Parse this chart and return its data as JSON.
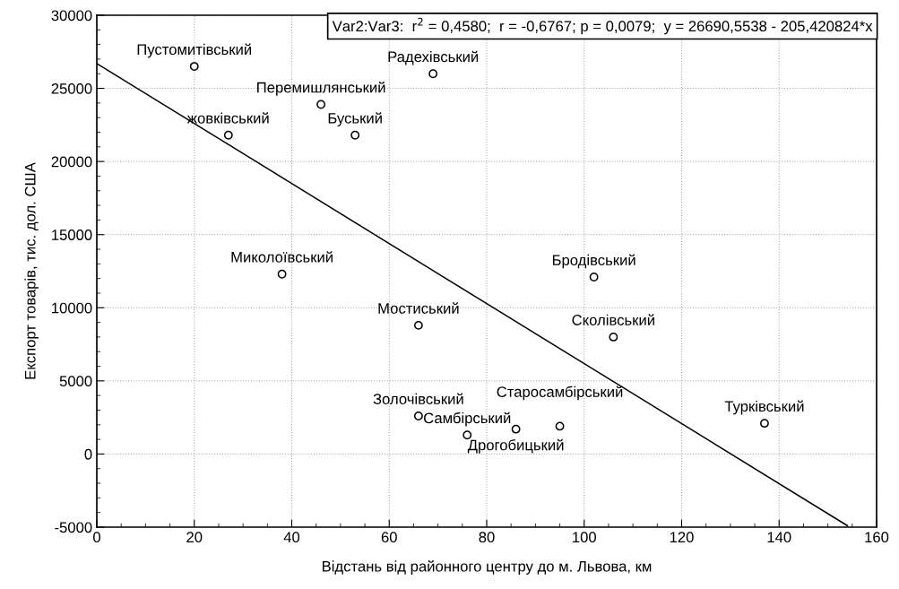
{
  "chart_data": {
    "type": "scatter",
    "xlabel": "Відстань від районного центру до м. Львова, км",
    "ylabel": "Експорт товарів, тис. дол. США",
    "xlim": [
      0,
      160
    ],
    "xticks": [
      0,
      20,
      40,
      60,
      80,
      100,
      120,
      140,
      160
    ],
    "ylim": [
      -5000,
      30000
    ],
    "yticks": [
      -5000,
      0,
      5000,
      10000,
      15000,
      20000,
      25000,
      30000
    ],
    "grid": true,
    "legend": false,
    "series": [
      {
        "marker": "circle",
        "color": "#000000",
        "x": [
          20,
          69,
          46,
          27,
          53,
          38,
          102,
          66,
          106,
          137,
          66,
          76,
          86,
          95
        ],
        "values": [
          26500,
          26000,
          23900,
          21800,
          21800,
          12300,
          12100,
          8800,
          8000,
          2100,
          2600,
          1300,
          1700,
          1900
        ]
      },
      {
        "type": "line",
        "color": "#000000",
        "x": [
          0,
          154
        ],
        "values": [
          26700,
          -4900
        ]
      }
    ],
    "annotations": [
      {
        "text": "Пустомитівський",
        "x": 20,
        "y": 26500
      },
      {
        "text": "Радехівський",
        "x": 69,
        "y": 26000
      },
      {
        "text": "Перемишлянський",
        "x": 46,
        "y": 23900
      },
      {
        "text": "жовківський",
        "x": 27,
        "y": 21800
      },
      {
        "text": "Буський",
        "x": 53,
        "y": 21800
      },
      {
        "text": "Миколоївський",
        "x": 38,
        "y": 12300
      },
      {
        "text": "Бродівський",
        "x": 102,
        "y": 12100
      },
      {
        "text": "Мостиський",
        "x": 66,
        "y": 8800
      },
      {
        "text": "Сколівський",
        "x": 106,
        "y": 8000
      },
      {
        "text": "Турківський",
        "x": 137,
        "y": 2100
      },
      {
        "text": "Золочівський",
        "x": 66,
        "y": 2600
      },
      {
        "text": "Самбірський",
        "x": 76,
        "y": 1300
      },
      {
        "text": "Дрогобицький",
        "x": 86,
        "y": 1700
      },
      {
        "text": "Старосамбірський",
        "x": 95,
        "y": 1900
      },
      "Var2:Var3:  r$^{2}$ = 0,4580;  r = -0,6767; p = 0,0079;  y = 26690,5538 - 205,420824*x"
    ]
  }
}
